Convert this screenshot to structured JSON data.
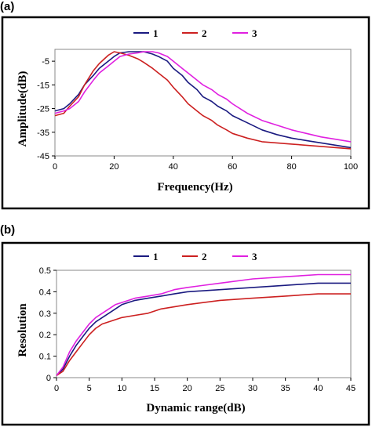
{
  "panels": [
    {
      "label": "(a)"
    },
    {
      "label": "(b)"
    }
  ],
  "chart_data": [
    {
      "type": "line",
      "xlabel": "Frequency(Hz)",
      "ylabel": "Amplitude(dB)",
      "xlim": [
        0,
        100
      ],
      "ylim": [
        -45,
        0
      ],
      "xticks": [
        0,
        20,
        40,
        60,
        80,
        100
      ],
      "yticks": [
        -5,
        -15,
        -25,
        -35,
        -45
      ],
      "grid": false,
      "legend": "top-center",
      "series": [
        {
          "name": "1",
          "color": "#1a1a80",
          "x": [
            0,
            3,
            5,
            8,
            10,
            13,
            15,
            18,
            20,
            22,
            25,
            28,
            30,
            33,
            35,
            38,
            40,
            43,
            45,
            48,
            50,
            53,
            55,
            58,
            60,
            65,
            70,
            75,
            80,
            85,
            90,
            95,
            100
          ],
          "y": [
            -26,
            -25,
            -23,
            -19,
            -15,
            -11,
            -8,
            -5,
            -3,
            -1.5,
            -1,
            -1,
            -1,
            -2,
            -3,
            -5,
            -8,
            -11,
            -14,
            -17,
            -20,
            -22,
            -24,
            -26,
            -28,
            -31,
            -34,
            -36,
            -37.5,
            -38.5,
            -39.5,
            -40.5,
            -41.5
          ]
        },
        {
          "name": "2",
          "color": "#cc2020",
          "x": [
            0,
            3,
            5,
            8,
            10,
            13,
            15,
            18,
            20,
            22,
            25,
            28,
            30,
            33,
            35,
            38,
            40,
            43,
            45,
            48,
            50,
            53,
            55,
            58,
            60,
            65,
            70,
            75,
            80,
            85,
            90,
            95,
            100
          ],
          "y": [
            -28,
            -27,
            -24,
            -20,
            -15,
            -9,
            -6,
            -2.5,
            -1,
            -1.5,
            -2.5,
            -4,
            -5.5,
            -8,
            -10,
            -13,
            -16,
            -20,
            -23,
            -26,
            -28,
            -30,
            -32,
            -34,
            -35.5,
            -37.5,
            -39,
            -39.5,
            -40,
            -40.5,
            -41,
            -41.5,
            -42
          ]
        },
        {
          "name": "3",
          "color": "#e020e0",
          "x": [
            0,
            3,
            5,
            8,
            10,
            13,
            15,
            18,
            20,
            22,
            25,
            28,
            30,
            33,
            35,
            38,
            40,
            43,
            45,
            48,
            50,
            53,
            55,
            58,
            60,
            65,
            70,
            75,
            80,
            85,
            90,
            95,
            100
          ],
          "y": [
            -27,
            -26,
            -25,
            -22,
            -18,
            -13,
            -10,
            -7,
            -5,
            -3,
            -2,
            -1.5,
            -1,
            -1,
            -1.5,
            -3,
            -5,
            -8,
            -10,
            -13,
            -15,
            -17,
            -19,
            -21,
            -23,
            -27,
            -30,
            -32,
            -34,
            -35.5,
            -37,
            -38,
            -39
          ]
        }
      ]
    },
    {
      "type": "line",
      "xlabel": "Dynamic range(dB)",
      "ylabel": "Resolution",
      "xlim": [
        0,
        45
      ],
      "ylim": [
        0,
        0.5
      ],
      "xticks": [
        0,
        5,
        10,
        15,
        20,
        25,
        30,
        35,
        40,
        45
      ],
      "yticks": [
        0,
        0.1,
        0.2,
        0.3,
        0.4,
        0.5
      ],
      "grid": false,
      "legend": "top-center",
      "series": [
        {
          "name": "1",
          "color": "#1a1a80",
          "x": [
            0,
            1,
            2,
            3,
            4,
            5,
            6,
            7,
            8,
            9,
            10,
            12,
            14,
            16,
            18,
            20,
            25,
            30,
            35,
            40,
            45
          ],
          "y": [
            0.01,
            0.04,
            0.1,
            0.15,
            0.19,
            0.23,
            0.26,
            0.28,
            0.3,
            0.32,
            0.34,
            0.36,
            0.37,
            0.38,
            0.39,
            0.4,
            0.41,
            0.42,
            0.43,
            0.44,
            0.44
          ]
        },
        {
          "name": "2",
          "color": "#cc2020",
          "x": [
            0,
            1,
            2,
            3,
            4,
            5,
            6,
            7,
            8,
            9,
            10,
            12,
            14,
            16,
            18,
            20,
            25,
            30,
            35,
            40,
            45
          ],
          "y": [
            0.01,
            0.03,
            0.08,
            0.12,
            0.16,
            0.2,
            0.23,
            0.25,
            0.26,
            0.27,
            0.28,
            0.29,
            0.3,
            0.32,
            0.33,
            0.34,
            0.36,
            0.37,
            0.38,
            0.39,
            0.39
          ]
        },
        {
          "name": "3",
          "color": "#e020e0",
          "x": [
            0,
            1,
            2,
            3,
            4,
            5,
            6,
            7,
            8,
            9,
            10,
            12,
            14,
            16,
            18,
            20,
            25,
            30,
            35,
            40,
            45
          ],
          "y": [
            0.01,
            0.05,
            0.12,
            0.17,
            0.21,
            0.25,
            0.28,
            0.3,
            0.32,
            0.34,
            0.35,
            0.37,
            0.38,
            0.39,
            0.41,
            0.42,
            0.44,
            0.46,
            0.47,
            0.48,
            0.48
          ]
        }
      ]
    }
  ]
}
